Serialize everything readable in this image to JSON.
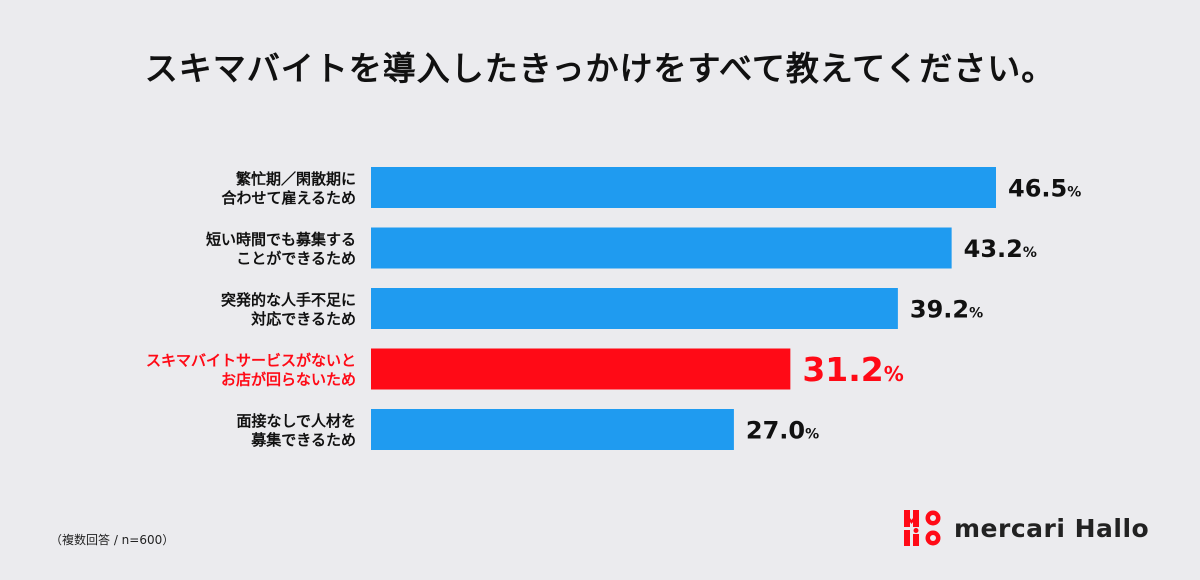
{
  "title": "スキマバイトを導入したきっかけをすべて教えてください。",
  "note": "（複数回答 / n=600）",
  "brand": {
    "name": "mercari Hallo"
  },
  "colors": {
    "bar": "#1f9bf0",
    "highlight": "#ff0a16",
    "text": "#111111"
  },
  "chart_data": {
    "type": "bar",
    "orientation": "horizontal",
    "unit": "%",
    "xlim": [
      0,
      46.5
    ],
    "highlight_index": 3,
    "categories": [
      [
        "繁忙期／閑散期に",
        "合わせて雇えるため"
      ],
      [
        "短い時間でも募集する",
        "ことができるため"
      ],
      [
        "突発的な人手不足に",
        "対応できるため"
      ],
      [
        "スキマバイトサービスがないと",
        "お店が回らないため"
      ],
      [
        "面接なしで人材を",
        "募集できるため"
      ]
    ],
    "values": [
      46.5,
      43.2,
      39.2,
      31.2,
      27.0
    ],
    "value_labels": [
      "46.5",
      "43.2",
      "39.2",
      "31.2",
      "27.0"
    ]
  }
}
